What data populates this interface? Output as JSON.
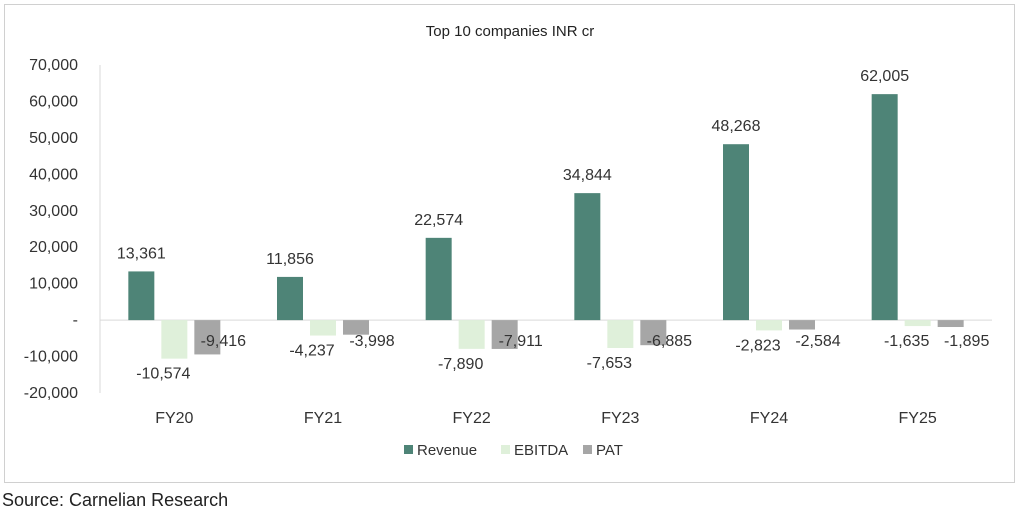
{
  "source": "Source: Carnelian Research",
  "chart_data": {
    "type": "bar",
    "title": "Top 10 companies INR cr",
    "xlabel": "",
    "ylabel": "",
    "categories": [
      "FY20",
      "FY21",
      "FY22",
      "FY23",
      "FY24",
      "FY25"
    ],
    "series": [
      {
        "name": "Revenue",
        "color": "#4e8477",
        "values": [
          13361,
          11856,
          22574,
          34844,
          48268,
          62005
        ],
        "labels": [
          "13,361",
          "11,856",
          "22,574",
          "34,844",
          "48,268",
          "62,005"
        ]
      },
      {
        "name": "EBITDA",
        "color": "#dff0da",
        "values": [
          -10574,
          -4237,
          -7890,
          -7653,
          -2823,
          -1635
        ],
        "labels": [
          "-10,574",
          "-4,237",
          "-7,890",
          "-7,653",
          "-2,823",
          "-1,635"
        ]
      },
      {
        "name": "PAT",
        "color": "#a6a6a6",
        "values": [
          -9416,
          -3998,
          -7911,
          -6885,
          -2584,
          -1895
        ],
        "labels": [
          "-9,416",
          "-3,998",
          "-7,911",
          "-6,885",
          "-2,584",
          "-1,895"
        ]
      }
    ],
    "ylim": [
      -20000,
      70000
    ],
    "yticks": [
      70000,
      60000,
      50000,
      40000,
      30000,
      20000,
      10000,
      0,
      -10000,
      -20000
    ],
    "ytick_labels": [
      "70,000",
      "60,000",
      "50,000",
      "40,000",
      "30,000",
      "20,000",
      "10,000",
      "-",
      "-10,000",
      "-20,000"
    ],
    "grid": false,
    "legend_position": "bottom"
  }
}
